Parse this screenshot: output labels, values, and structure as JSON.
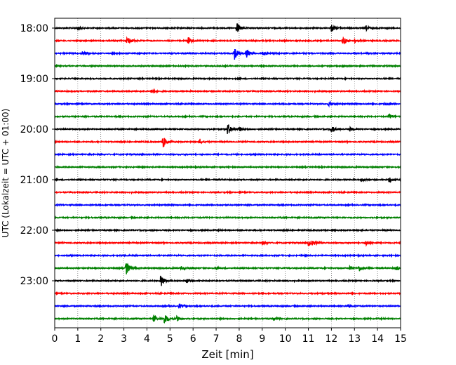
{
  "chart_data": {
    "type": "line",
    "title": "",
    "xlabel": "Zeit  [min]",
    "ylabel": "UTC (Lokalzeit = UTC + 01:00)",
    "xlim": [
      0,
      15
    ],
    "x_ticks": [
      "0",
      "1",
      "2",
      "3",
      "4",
      "5",
      "6",
      "7",
      "8",
      "9",
      "10",
      "11",
      "12",
      "13",
      "14",
      "15"
    ],
    "y_tick_labels": [
      "18:00",
      "19:00",
      "20:00",
      "21:00",
      "22:00",
      "23:00"
    ],
    "grid": "vertical dotted",
    "colors": [
      "#000000",
      "#ff0000",
      "#0000ff",
      "#008000"
    ],
    "traces": [
      {
        "start": "18:00",
        "color": "#000000",
        "events": [
          {
            "t": 1.0,
            "amp": 0.15
          },
          {
            "t": 7.9,
            "amp": 0.45
          },
          {
            "t": 12.0,
            "amp": 0.3
          },
          {
            "t": 13.5,
            "amp": 0.2
          }
        ]
      },
      {
        "start": "18:15",
        "color": "#ff0000",
        "events": [
          {
            "t": 3.15,
            "amp": 0.4
          },
          {
            "t": 5.8,
            "amp": 0.3
          },
          {
            "t": 12.5,
            "amp": 0.35
          },
          {
            "t": 13.0,
            "amp": 0.15
          }
        ]
      },
      {
        "start": "18:30",
        "color": "#0000ff",
        "events": [
          {
            "t": 1.2,
            "amp": 0.15
          },
          {
            "t": 7.8,
            "amp": 0.5
          },
          {
            "t": 8.3,
            "amp": 0.4
          },
          {
            "t": 9.0,
            "amp": 0.15
          }
        ]
      },
      {
        "start": "18:45",
        "color": "#008000",
        "events": [
          {
            "t": 12.5,
            "amp": 0.1
          }
        ]
      },
      {
        "start": "19:00",
        "color": "#000000",
        "events": []
      },
      {
        "start": "19:15",
        "color": "#ff0000",
        "events": [
          {
            "t": 4.2,
            "amp": 0.2
          }
        ]
      },
      {
        "start": "19:30",
        "color": "#0000ff",
        "events": [
          {
            "t": 11.9,
            "amp": 0.2
          },
          {
            "t": 14.3,
            "amp": 0.1
          }
        ]
      },
      {
        "start": "19:45",
        "color": "#008000",
        "events": [
          {
            "t": 14.5,
            "amp": 0.25
          }
        ]
      },
      {
        "start": "20:00",
        "color": "#000000",
        "events": [
          {
            "t": 7.5,
            "amp": 0.5
          },
          {
            "t": 8.0,
            "amp": 0.2
          },
          {
            "t": 12.0,
            "amp": 0.35
          },
          {
            "t": 12.8,
            "amp": 0.15
          }
        ]
      },
      {
        "start": "20:15",
        "color": "#ff0000",
        "events": [
          {
            "t": 4.7,
            "amp": 0.5
          },
          {
            "t": 6.3,
            "amp": 0.2
          }
        ]
      },
      {
        "start": "20:30",
        "color": "#0000ff",
        "events": []
      },
      {
        "start": "20:45",
        "color": "#008000",
        "events": []
      },
      {
        "start": "21:00",
        "color": "#000000",
        "events": [
          {
            "t": 13.3,
            "amp": 0.15
          },
          {
            "t": 14.5,
            "amp": 0.2
          }
        ]
      },
      {
        "start": "21:15",
        "color": "#ff0000",
        "events": []
      },
      {
        "start": "21:30",
        "color": "#0000ff",
        "events": []
      },
      {
        "start": "21:45",
        "color": "#008000",
        "events": []
      },
      {
        "start": "22:00",
        "color": "#000000",
        "events": []
      },
      {
        "start": "22:15",
        "color": "#ff0000",
        "events": [
          {
            "t": 9.0,
            "amp": 0.15
          },
          {
            "t": 11.0,
            "amp": 0.25
          },
          {
            "t": 11.2,
            "amp": 0.2
          },
          {
            "t": 13.5,
            "amp": 0.25
          }
        ]
      },
      {
        "start": "22:30",
        "color": "#0000ff",
        "events": []
      },
      {
        "start": "22:45",
        "color": "#008000",
        "events": [
          {
            "t": 3.1,
            "amp": 0.55
          },
          {
            "t": 5.5,
            "amp": 0.15
          },
          {
            "t": 7.0,
            "amp": 0.12
          },
          {
            "t": 12.8,
            "amp": 0.2
          },
          {
            "t": 13.2,
            "amp": 0.25
          },
          {
            "t": 14.8,
            "amp": 0.2
          }
        ]
      },
      {
        "start": "23:00",
        "color": "#000000",
        "events": [
          {
            "t": 4.6,
            "amp": 0.55
          },
          {
            "t": 5.7,
            "amp": 0.15
          }
        ]
      },
      {
        "start": "23:15",
        "color": "#ff0000",
        "events": []
      },
      {
        "start": "23:30",
        "color": "#0000ff",
        "events": [
          {
            "t": 5.4,
            "amp": 0.2
          },
          {
            "t": 12.7,
            "amp": 0.15
          }
        ]
      },
      {
        "start": "23:45",
        "color": "#008000",
        "events": [
          {
            "t": 4.3,
            "amp": 0.3
          },
          {
            "t": 4.75,
            "amp": 0.5
          },
          {
            "t": 5.3,
            "amp": 0.2
          },
          {
            "t": 9.5,
            "amp": 0.12
          }
        ]
      }
    ]
  }
}
